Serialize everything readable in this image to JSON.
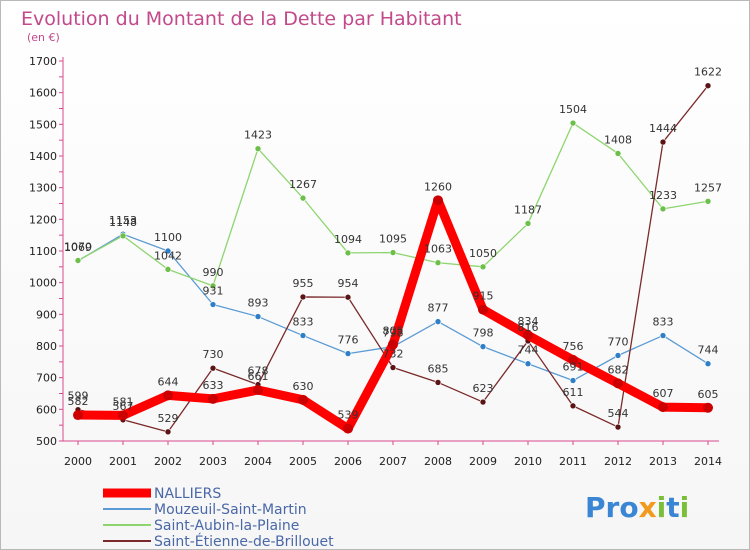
{
  "chart_data": {
    "type": "line",
    "title": "Evolution du Montant de la Dette par Habitant",
    "subtitle": "(en €)",
    "x": [
      2000,
      2001,
      2002,
      2003,
      2004,
      2005,
      2006,
      2007,
      2008,
      2009,
      2010,
      2011,
      2012,
      2013,
      2014
    ],
    "x_labels": [
      "2000",
      "2001",
      "2002",
      "2003",
      "2004",
      "2005",
      "2006",
      "2007",
      "2008",
      "2009",
      "2010",
      "2011",
      "2012",
      "2013",
      "2014"
    ],
    "ylim": [
      500,
      1700
    ],
    "y_ticks": [
      500,
      600,
      700,
      800,
      900,
      1000,
      1100,
      1200,
      1300,
      1400,
      1500,
      1600,
      1700
    ],
    "y_tick_labels": [
      "500",
      "600",
      "700",
      "800",
      "900",
      "1000",
      "1100",
      "1200",
      "1300",
      "1400",
      "1500",
      "1600",
      "1700"
    ],
    "grid": false,
    "legend_position": "bottom-left",
    "series": [
      {
        "name": "NALLIERS",
        "color": "#ff0000",
        "dot": "#cc0000",
        "values": [
          582,
          581,
          644,
          633,
          661,
          630,
          539,
          805,
          1260,
          915,
          834,
          756,
          682,
          607,
          605
        ],
        "labels": [
          "582",
          "581",
          "644",
          "633",
          "661",
          "630",
          "539",
          "805",
          "1260",
          "915",
          "834",
          "756",
          "682",
          "607",
          "605"
        ]
      },
      {
        "name": "Mouzeuil-Saint-Martin",
        "color": "#5b9bd5",
        "dot": "#2f7fc7",
        "values": [
          1069,
          1153,
          1100,
          931,
          893,
          833,
          776,
          798,
          877,
          798,
          744,
          691,
          770,
          833,
          744
        ],
        "labels": [
          "1069",
          "1153",
          "1100",
          "931",
          "893",
          "833",
          "776",
          "798",
          "877",
          "798",
          "744",
          "691",
          "770",
          "833",
          "744"
        ]
      },
      {
        "name": "Saint-Aubin-la-Plaine",
        "color": "#8ed56f",
        "dot": "#6cc04a",
        "values": [
          1070,
          1148,
          1042,
          990,
          1423,
          1267,
          1094,
          1095,
          1063,
          1050,
          1187,
          1504,
          1408,
          1233,
          1257
        ],
        "labels": [
          "1070",
          "1148",
          "1042",
          "990",
          "1423",
          "1267",
          "1094",
          "1095",
          "1063",
          "1050",
          "1187",
          "1504",
          "1408",
          "1233",
          "1257"
        ]
      },
      {
        "name": "Saint-Étienne-de-Brillouet",
        "color": "#7a2a2a",
        "dot": "#5a1414",
        "values": [
          599,
          567,
          529,
          730,
          678,
          955,
          954,
          732,
          685,
          623,
          816,
          611,
          544,
          1444,
          1622
        ],
        "labels": [
          "599",
          "567",
          "529",
          "730",
          "678",
          "955",
          "954",
          "732",
          "685",
          "623",
          "816",
          "611",
          "544",
          "1444",
          "1622"
        ]
      }
    ]
  },
  "watermark": "Proxiti"
}
